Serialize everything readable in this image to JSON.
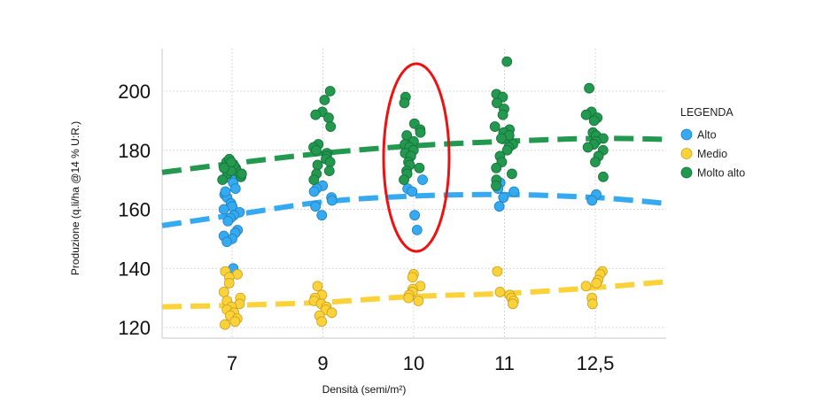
{
  "chart_data": {
    "type": "scatter",
    "title": "",
    "xlabel": "Densità (semi/m²)",
    "ylabel": "Produzione (q.li/ha @14 % U:R.)",
    "categories": [
      "7",
      "9",
      "10",
      "11",
      "12,5"
    ],
    "yticks": [
      120,
      140,
      160,
      180,
      200
    ],
    "ylim": [
      116,
      215
    ],
    "grid": true,
    "legend_title": "LEGENDA",
    "legend_position": "right",
    "series": [
      {
        "name": "Alto",
        "color": "#35aaf0",
        "stroke": "#1e7fc0",
        "points": [
          [
            170,
            169,
            165,
            164,
            162,
            161,
            160,
            159,
            158,
            157,
            156,
            153,
            152,
            151,
            150,
            149,
            167,
            166,
            140
          ],
          [
            168,
            167,
            166,
            164,
            163,
            161,
            158
          ],
          [
            170,
            167,
            166,
            158,
            153
          ],
          [
            169,
            167,
            166,
            164,
            161
          ],
          [
            165,
            163
          ]
        ],
        "trend": [
          154.5,
          158,
          162.5,
          164.5,
          165,
          164,
          162
        ]
      },
      {
        "name": "Medio",
        "color": "#fbd23a",
        "stroke": "#c9a21c",
        "points": [
          [
            139,
            138,
            137,
            135,
            132,
            130,
            129,
            128,
            127,
            126,
            125,
            124,
            123,
            122,
            121
          ],
          [
            134,
            131,
            130,
            129,
            128,
            127,
            126,
            125,
            124,
            122
          ],
          [
            138,
            137,
            134,
            133,
            132,
            131,
            130,
            129
          ],
          [
            139,
            132,
            131,
            130,
            129,
            128
          ],
          [
            139,
            138,
            136,
            135,
            134,
            130,
            128
          ]
        ],
        "trend": [
          127,
          127.5,
          128.5,
          130.5,
          131.5,
          133.5,
          135.5
        ]
      },
      {
        "name": "Molto alto",
        "color": "#23984f",
        "stroke": "#16703a",
        "points": [
          [
            176,
            175,
            174,
            173,
            172,
            171,
            170,
            177,
            175,
            173,
            174,
            172,
            176
          ],
          [
            200,
            197,
            193,
            192,
            191,
            188,
            182,
            181,
            180,
            179,
            178,
            177,
            176,
            175,
            173,
            172,
            170
          ],
          [
            198,
            196,
            189,
            187,
            186,
            185,
            183,
            182,
            181,
            180,
            179,
            178,
            176,
            175,
            174,
            173,
            172,
            170
          ],
          [
            210,
            199,
            198,
            196,
            194,
            192,
            188,
            187,
            186,
            185,
            184,
            182,
            181,
            180,
            178,
            176,
            174,
            172,
            170,
            168
          ],
          [
            201,
            193,
            192,
            191,
            190,
            186,
            185,
            184,
            183,
            182,
            181,
            180,
            178,
            176,
            171
          ]
        ],
        "trend": [
          172.5,
          175.5,
          179,
          181.5,
          183,
          184,
          183.7
        ]
      }
    ],
    "annotation": {
      "type": "ellipse",
      "color": "#ee1111",
      "category": "10"
    }
  }
}
